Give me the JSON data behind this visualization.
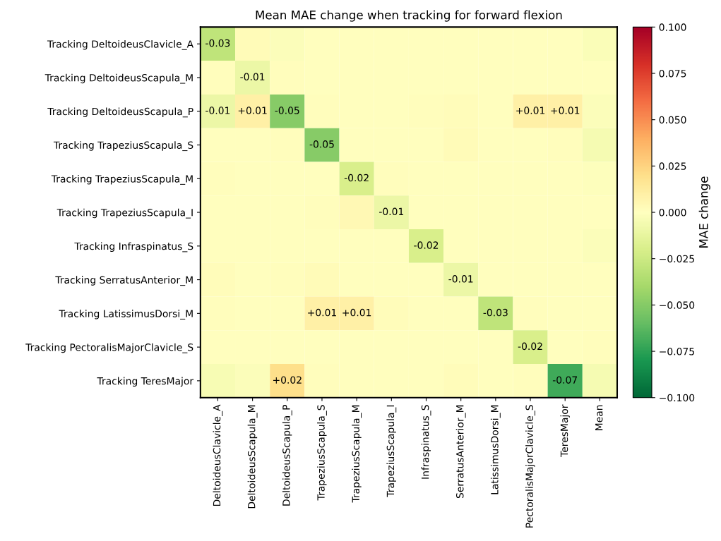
{
  "chart_data": {
    "type": "heatmap",
    "title": "Mean MAE change when tracking for forward flexion",
    "clabel": "MAE change",
    "categories": [
      "DeltoideusClavicle_A",
      "DeltoideusScapula_M",
      "DeltoideusScapula_P",
      "TrapeziusScapula_S",
      "TrapeziusScapula_M",
      "TrapeziusScapula_I",
      "Infraspinatus_S",
      "SerratusAnterior_M",
      "LatissimusDorsi_M",
      "PectoralisMajorClavicle_S",
      "TeresMajor",
      "Mean"
    ],
    "y_categories": [
      "Tracking DeltoideusClavicle_A",
      "Tracking DeltoideusScapula_M",
      "Tracking DeltoideusScapula_P",
      "Tracking TrapeziusScapula_S",
      "Tracking TrapeziusScapula_M",
      "Tracking TrapeziusScapula_I",
      "Tracking Infraspinatus_S",
      "Tracking SerratusAnterior_M",
      "Tracking LatissimusDorsi_M",
      "Tracking PectoralisMajorClavicle_S",
      "Tracking TeresMajor"
    ],
    "cells": [
      [
        -0.03,
        0.003,
        -0.002,
        0,
        0,
        0,
        0,
        0,
        0,
        0,
        0,
        -0.003
      ],
      [
        0.001,
        -0.01,
        0.001,
        0,
        0,
        0,
        0,
        0,
        0,
        0,
        0,
        0
      ],
      [
        -0.01,
        0.01,
        -0.05,
        0.001,
        0,
        0,
        0.001,
        0.002,
        0,
        0.01,
        0.01,
        -0.002
      ],
      [
        0,
        0,
        0.001,
        -0.05,
        0,
        0,
        0,
        0.003,
        0,
        0,
        0.001,
        -0.005
      ],
      [
        0.001,
        0,
        0,
        0,
        -0.02,
        0.001,
        0,
        0,
        0,
        0,
        0,
        -0.001
      ],
      [
        0,
        0,
        0,
        0.001,
        0.004,
        -0.01,
        0,
        0,
        0,
        0,
        0,
        0
      ],
      [
        0,
        0,
        0,
        0,
        0,
        0,
        -0.02,
        0,
        0,
        0,
        0,
        -0.002
      ],
      [
        0.002,
        0,
        0.001,
        0.003,
        0,
        0,
        0,
        -0.01,
        0,
        0,
        0,
        0
      ],
      [
        0.001,
        0,
        0,
        0.01,
        0.01,
        0.002,
        0,
        0,
        -0.03,
        0.001,
        0,
        0
      ],
      [
        0,
        0,
        0,
        0,
        0,
        0,
        0,
        0,
        0,
        -0.02,
        0,
        0.001
      ],
      [
        -0.004,
        -0.002,
        0.02,
        0.001,
        0,
        0,
        0,
        0.002,
        0,
        0.001,
        -0.07,
        -0.005
      ]
    ],
    "cell_labels": [
      [
        "-0.03",
        null,
        null,
        null,
        null,
        null,
        null,
        null,
        null,
        null,
        null,
        null
      ],
      [
        null,
        "-0.01",
        null,
        null,
        null,
        null,
        null,
        null,
        null,
        null,
        null,
        null
      ],
      [
        "-0.01",
        "+0.01",
        "-0.05",
        null,
        null,
        null,
        null,
        null,
        null,
        "+0.01",
        "+0.01",
        null
      ],
      [
        null,
        null,
        null,
        "-0.05",
        null,
        null,
        null,
        null,
        null,
        null,
        null,
        null
      ],
      [
        null,
        null,
        null,
        null,
        "-0.02",
        null,
        null,
        null,
        null,
        null,
        null,
        null
      ],
      [
        null,
        null,
        null,
        null,
        null,
        "-0.01",
        null,
        null,
        null,
        null,
        null,
        null
      ],
      [
        null,
        null,
        null,
        null,
        null,
        null,
        "-0.02",
        null,
        null,
        null,
        null,
        null
      ],
      [
        null,
        null,
        null,
        null,
        null,
        null,
        null,
        "-0.01",
        null,
        null,
        null,
        null
      ],
      [
        null,
        null,
        null,
        "+0.01",
        "+0.01",
        null,
        null,
        null,
        "-0.03",
        null,
        null,
        null
      ],
      [
        null,
        null,
        null,
        null,
        null,
        null,
        null,
        null,
        null,
        "-0.02",
        null,
        null
      ],
      [
        null,
        null,
        "+0.02",
        null,
        null,
        null,
        null,
        null,
        null,
        null,
        "-0.07",
        null
      ]
    ],
    "clim": [
      -0.1,
      0.1
    ],
    "cticks": [
      {
        "value": -0.1,
        "label": "−0.100"
      },
      {
        "value": -0.075,
        "label": "−0.075"
      },
      {
        "value": -0.05,
        "label": "−0.050"
      },
      {
        "value": -0.025,
        "label": "−0.025"
      },
      {
        "value": 0,
        "label": "0.000"
      },
      {
        "value": 0.025,
        "label": "0.025"
      },
      {
        "value": 0.05,
        "label": "0.050"
      },
      {
        "value": 0.075,
        "label": "0.075"
      },
      {
        "value": 0.1,
        "label": "0.100"
      }
    ]
  }
}
